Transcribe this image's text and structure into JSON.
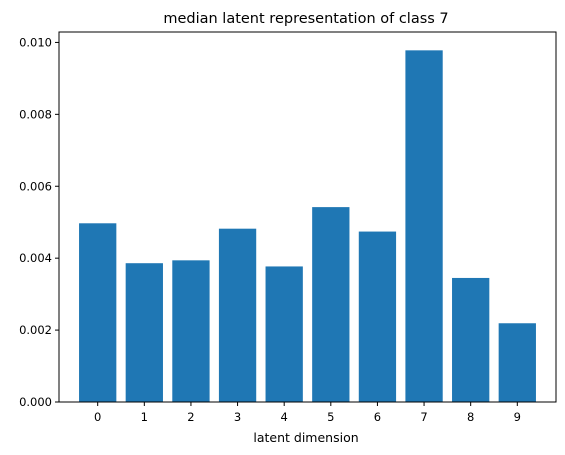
{
  "chart_data": {
    "type": "bar",
    "title": "median latent representation of class 7",
    "xlabel": "latent dimension",
    "ylabel": "",
    "categories": [
      "0",
      "1",
      "2",
      "3",
      "4",
      "5",
      "6",
      "7",
      "8",
      "9"
    ],
    "values": [
      0.00497,
      0.00386,
      0.00394,
      0.00482,
      0.00377,
      0.00542,
      0.00474,
      0.00978,
      0.00345,
      0.00219
    ],
    "ylim": [
      0,
      0.01029
    ],
    "yticks": [
      "0.000",
      "0.002",
      "0.004",
      "0.006",
      "0.008",
      "0.010"
    ],
    "ytick_values": [
      0,
      0.002,
      0.004,
      0.006,
      0.008,
      0.01
    ],
    "grid": false,
    "legend": "none",
    "bar_color": "#1f77b4"
  }
}
